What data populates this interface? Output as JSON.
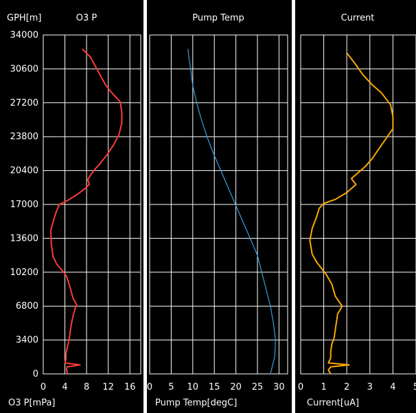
{
  "y_axis_label": "GPH[m]",
  "y_ticks": [
    "34000",
    "30600",
    "27200",
    "23800",
    "20400",
    "17000",
    "13600",
    "10200",
    "6800",
    "3400",
    "0"
  ],
  "chart_data": [
    {
      "type": "line",
      "title": "O3 P",
      "xlabel": "O3 P[mPa]",
      "ylabel": "GPH[m]",
      "xlim": [
        0,
        18
      ],
      "ylim": [
        0,
        34000
      ],
      "x_ticks": [
        "0",
        "4",
        "8",
        "12",
        "16"
      ],
      "x_tick_values": [
        0,
        4,
        8,
        12,
        16
      ],
      "color": "#ff3b3b",
      "series": [
        {
          "name": "O3 P",
          "points": [
            [
              4.5,
              0
            ],
            [
              4.3,
              400
            ],
            [
              4.4,
              700
            ],
            [
              6.8,
              900
            ],
            [
              4.0,
              1100
            ],
            [
              4.2,
              1500
            ],
            [
              4.2,
              2000
            ],
            [
              4.5,
              2800
            ],
            [
              4.8,
              3500
            ],
            [
              5.0,
              4300
            ],
            [
              5.2,
              5000
            ],
            [
              5.5,
              5800
            ],
            [
              5.9,
              6600
            ],
            [
              6.2,
              6900
            ],
            [
              5.5,
              7600
            ],
            [
              5.0,
              8600
            ],
            [
              4.3,
              9800
            ],
            [
              3.5,
              10400
            ],
            [
              2.5,
              11000
            ],
            [
              1.8,
              11800
            ],
            [
              1.5,
              13000
            ],
            [
              1.4,
              14400
            ],
            [
              2.0,
              15600
            ],
            [
              2.5,
              16400
            ],
            [
              3.0,
              17000
            ],
            [
              4.5,
              17400
            ],
            [
              6.0,
              17900
            ],
            [
              7.5,
              18500
            ],
            [
              8.5,
              19000
            ],
            [
              8.2,
              19500
            ],
            [
              8.8,
              20000
            ],
            [
              9.5,
              20500
            ],
            [
              10.5,
              21100
            ],
            [
              11.8,
              22000
            ],
            [
              13.0,
              23000
            ],
            [
              14.0,
              24000
            ],
            [
              14.5,
              25200
            ],
            [
              14.5,
              26300
            ],
            [
              14.2,
              27300
            ],
            [
              12.5,
              28300
            ],
            [
              11.5,
              29000
            ],
            [
              10.5,
              30000
            ],
            [
              9.5,
              31000
            ],
            [
              8.7,
              31800
            ],
            [
              7.2,
              32600
            ]
          ]
        }
      ]
    },
    {
      "type": "line",
      "title": "Pump Temp",
      "xlabel": "Pump Temp[degC]",
      "ylabel": "GPH[m]",
      "xlim": [
        0,
        32
      ],
      "ylim": [
        0,
        34000
      ],
      "x_ticks": [
        "0",
        "5",
        "10",
        "15",
        "20",
        "25",
        "30"
      ],
      "x_tick_values": [
        0,
        5,
        10,
        15,
        20,
        25,
        30
      ],
      "color": "#3aa0e0",
      "series": [
        {
          "name": "Pump Temp",
          "points": [
            [
              28.0,
              0
            ],
            [
              29.0,
              1700
            ],
            [
              29.2,
              3400
            ],
            [
              28.7,
              5100
            ],
            [
              28.0,
              6800
            ],
            [
              27.0,
              8500
            ],
            [
              26.0,
              10200
            ],
            [
              25.0,
              11900
            ],
            [
              23.3,
              13600
            ],
            [
              21.6,
              15300
            ],
            [
              19.9,
              17000
            ],
            [
              18.2,
              18700
            ],
            [
              16.5,
              20400
            ],
            [
              14.8,
              22100
            ],
            [
              13.3,
              23800
            ],
            [
              12.0,
              25500
            ],
            [
              10.9,
              27200
            ],
            [
              10.0,
              28900
            ],
            [
              9.5,
              30600
            ],
            [
              9.1,
              31700
            ],
            [
              8.9,
              32600
            ]
          ]
        }
      ]
    },
    {
      "type": "line",
      "title": "Current",
      "xlabel": "Current[uA]",
      "ylabel": "GPH[m]",
      "xlim": [
        0,
        5
      ],
      "ylim": [
        0,
        34000
      ],
      "x_ticks": [
        "0",
        "1",
        "2",
        "3",
        "4",
        "5"
      ],
      "x_tick_values": [
        0,
        1,
        2,
        3,
        4,
        5
      ],
      "color": "#ffaa00",
      "series": [
        {
          "name": "Current",
          "points": [
            [
              1.3,
              0
            ],
            [
              1.2,
              400
            ],
            [
              1.3,
              700
            ],
            [
              2.1,
              900
            ],
            [
              1.2,
              1100
            ],
            [
              1.3,
              1600
            ],
            [
              1.3,
              2200
            ],
            [
              1.35,
              3000
            ],
            [
              1.45,
              3600
            ],
            [
              1.5,
              4400
            ],
            [
              1.55,
              5200
            ],
            [
              1.6,
              6000
            ],
            [
              1.8,
              6800
            ],
            [
              1.5,
              7800
            ],
            [
              1.35,
              9000
            ],
            [
              1.1,
              10000
            ],
            [
              0.9,
              10600
            ],
            [
              0.7,
              11200
            ],
            [
              0.5,
              12000
            ],
            [
              0.4,
              13400
            ],
            [
              0.5,
              14600
            ],
            [
              0.7,
              15800
            ],
            [
              0.8,
              16600
            ],
            [
              1.0,
              17100
            ],
            [
              1.5,
              17500
            ],
            [
              2.0,
              18200
            ],
            [
              2.4,
              19000
            ],
            [
              2.2,
              19600
            ],
            [
              2.5,
              20200
            ],
            [
              2.8,
              20800
            ],
            [
              3.1,
              21600
            ],
            [
              3.4,
              22600
            ],
            [
              3.7,
              23600
            ],
            [
              4.0,
              24600
            ],
            [
              4.0,
              25800
            ],
            [
              3.9,
              27000
            ],
            [
              3.5,
              28200
            ],
            [
              3.1,
              29000
            ],
            [
              2.7,
              30000
            ],
            [
              2.4,
              31000
            ],
            [
              2.0,
              32200
            ]
          ]
        }
      ]
    }
  ]
}
